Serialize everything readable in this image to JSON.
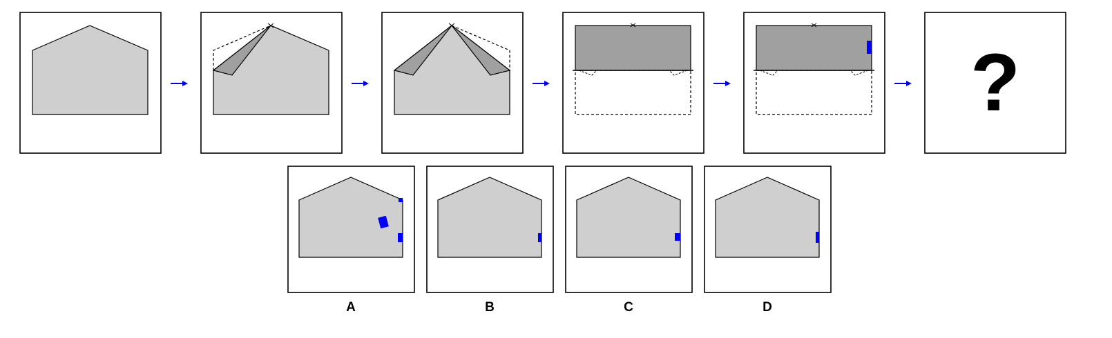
{
  "sequence": {
    "question_mark": "?"
  },
  "options": [
    {
      "label": "A"
    },
    {
      "label": "B"
    },
    {
      "label": "C"
    },
    {
      "label": "D"
    }
  ],
  "colors": {
    "paper": "#cfcfcf",
    "folded_paper": "#a0a0a0",
    "marker": "#0000ff",
    "arrow": "#0000ff",
    "outline": "#000000",
    "frame": "#000000"
  }
}
